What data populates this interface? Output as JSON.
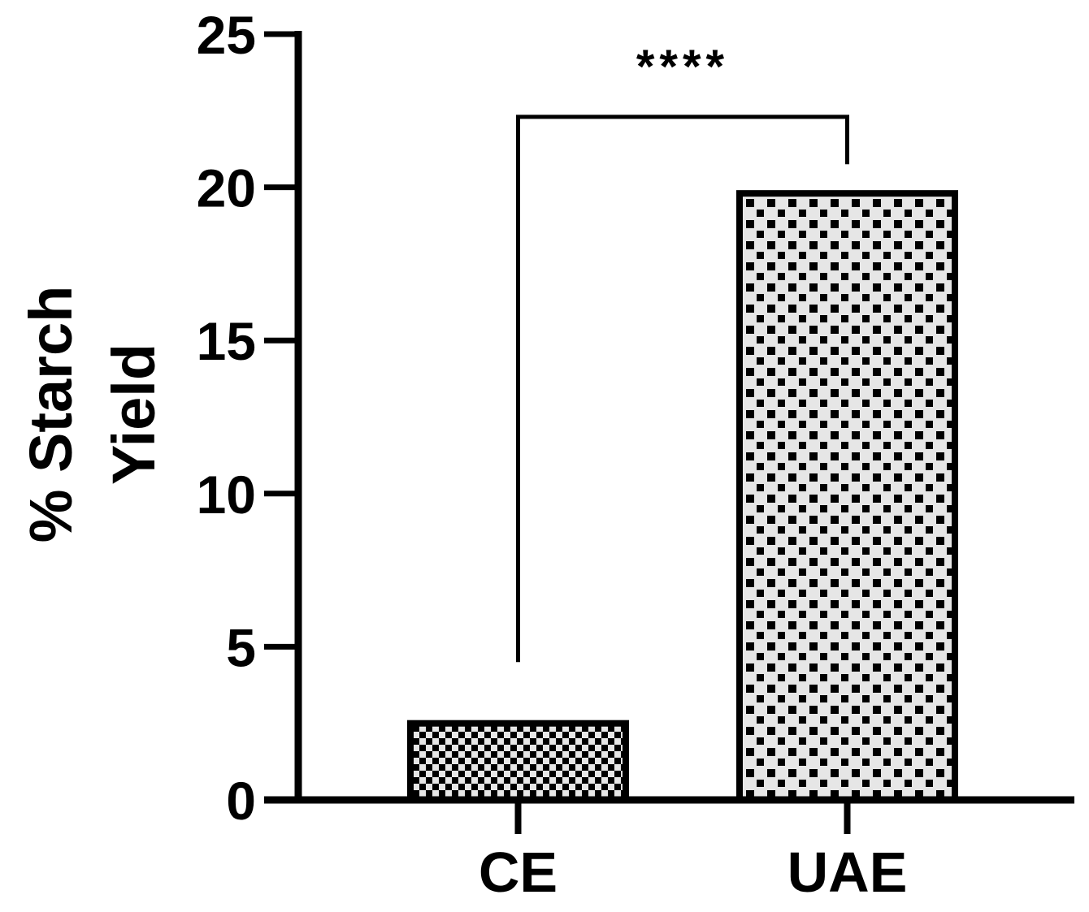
{
  "chart_data": {
    "type": "bar",
    "categories": [
      "CE",
      "UAE"
    ],
    "values": [
      2.5,
      19.8
    ],
    "ylabel": [
      "% Starch",
      "Yield"
    ],
    "yticks": [
      "0",
      "5",
      "10",
      "15",
      "20",
      "25"
    ],
    "ylim": [
      0,
      25
    ],
    "grid": false,
    "legend": "none",
    "significance": {
      "label": "****",
      "between": [
        "CE",
        "UAE"
      ]
    },
    "colors": {
      "axis": "#000000",
      "bar_outline": "#000000",
      "bar_fill_light": "#e6e6e6",
      "bar_fill_dark": "#000000"
    }
  }
}
